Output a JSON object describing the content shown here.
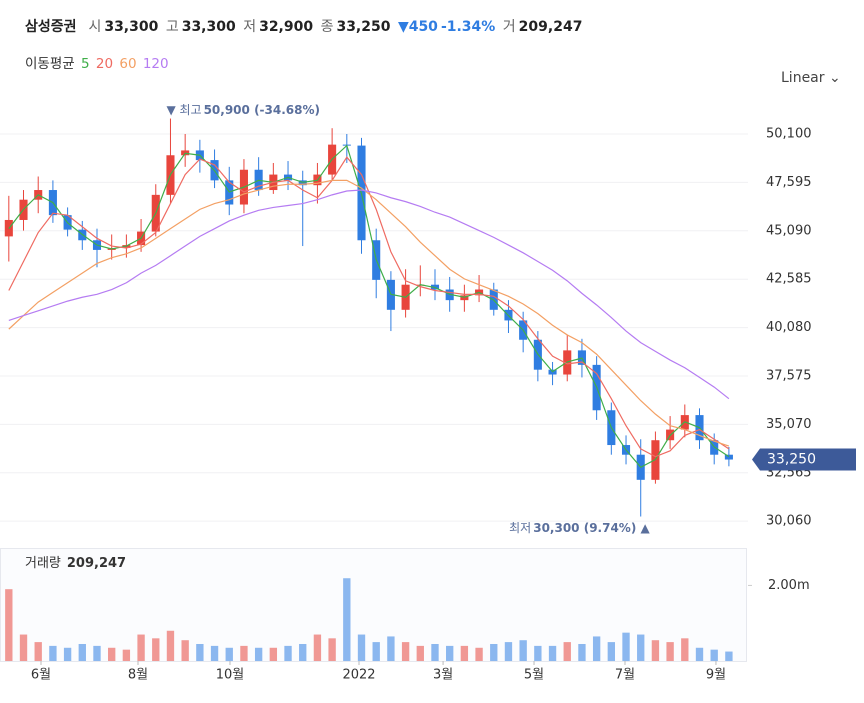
{
  "header": {
    "name": "삼성증권",
    "open_label": "시",
    "open": "33,300",
    "high_label": "고",
    "high": "33,300",
    "low_label": "저",
    "low": "32,900",
    "close_label": "종",
    "close": "33,250",
    "change": "▼450",
    "change_pct": "-1.34%",
    "volume_label": "거",
    "volume": "209,247"
  },
  "ma_legend": {
    "title": "이동평균"
  },
  "scale_mode": "Linear",
  "chart_data": [
    {
      "type": "candlestick",
      "up_color": "#e8453c",
      "down_color": "#2f7de1",
      "open": [
        44800,
        45650,
        46700,
        47200,
        45900,
        45150,
        44600,
        44100,
        44200,
        44350,
        45050,
        46950,
        49000,
        49250,
        48750,
        47700,
        46450,
        48250,
        47200,
        48000,
        47700,
        47450,
        48000,
        49550,
        49500,
        44600,
        42550,
        41000,
        42300,
        42300,
        42050,
        41500,
        41750,
        42050,
        41000,
        40450,
        39450,
        37900,
        37650,
        38900,
        38150,
        35800,
        34000,
        33500,
        32200,
        34250,
        34800,
        35550,
        34250,
        33500
      ],
      "high": [
        46900,
        47200,
        47900,
        47700,
        46300,
        45600,
        45200,
        44900,
        44900,
        45700,
        47500,
        50900,
        50100,
        49800,
        49300,
        48400,
        48800,
        48900,
        48600,
        48700,
        48200,
        48600,
        50400,
        50100,
        49900,
        45200,
        43000,
        43100,
        43300,
        43100,
        42700,
        42300,
        42800,
        42400,
        41500,
        40900,
        39900,
        38300,
        39700,
        39500,
        38600,
        36200,
        34500,
        34300,
        34700,
        35500,
        36100,
        35900,
        34600,
        33900
      ],
      "low": [
        43500,
        45100,
        46000,
        45500,
        44800,
        44100,
        43200,
        43600,
        43700,
        44000,
        44800,
        46500,
        48400,
        48100,
        47300,
        45900,
        46000,
        46900,
        47000,
        47200,
        44300,
        46500,
        47700,
        48600,
        43900,
        41600,
        39900,
        40600,
        41700,
        41500,
        40900,
        40900,
        41400,
        40700,
        39800,
        38800,
        37300,
        37100,
        37300,
        37500,
        35300,
        33500,
        33000,
        30300,
        32000,
        33800,
        34400,
        33800,
        33000,
        32900
      ],
      "close": [
        45650,
        46700,
        47200,
        45900,
        45150,
        44600,
        44100,
        44200,
        44350,
        45050,
        46950,
        49000,
        49250,
        48750,
        47700,
        46450,
        48250,
        47200,
        48000,
        47700,
        47450,
        48000,
        49550,
        49500,
        44600,
        42550,
        41000,
        42300,
        42300,
        42050,
        41500,
        41750,
        42050,
        41000,
        40450,
        39450,
        37900,
        37650,
        38900,
        38150,
        35800,
        34000,
        33500,
        32200,
        34250,
        34800,
        35550,
        34250,
        33500,
        33250
      ],
      "series": [
        {
          "name": "5",
          "color": "#3fae49",
          "values": [
            45200,
            46200,
            46950,
            46550,
            45500,
            44900,
            44350,
            44150,
            44300,
            44700,
            46000,
            48000,
            49100,
            49000,
            48200,
            47100,
            47350,
            47700,
            47600,
            47850,
            47600,
            47700,
            48800,
            49500,
            47000,
            43600,
            41800,
            41650,
            42300,
            42150,
            41800,
            41650,
            41900,
            41500,
            40700,
            39950,
            38700,
            37800,
            38300,
            38500,
            37000,
            34900,
            33750,
            32850,
            33250,
            34500,
            35200,
            34900,
            33900,
            33400
          ]
        },
        {
          "name": "20",
          "color": "#ef6b62",
          "values": [
            42000,
            43500,
            45000,
            46000,
            45900,
            45300,
            44700,
            44300,
            44200,
            44400,
            45000,
            46500,
            48000,
            48800,
            48500,
            47600,
            47100,
            47400,
            47600,
            47700,
            47200,
            46800,
            47700,
            48900,
            48000,
            46200,
            44000,
            42500,
            42200,
            42000,
            41900,
            41800,
            41800,
            41700,
            41200,
            40500,
            39500,
            38600,
            38200,
            38300,
            37700,
            36400,
            35000,
            33800,
            33400,
            33700,
            34500,
            34800,
            34300,
            33800
          ]
        },
        {
          "name": "60",
          "color": "#f3a064",
          "values": [
            40000,
            40700,
            41400,
            41900,
            42400,
            42900,
            43400,
            43700,
            43900,
            44200,
            44700,
            45200,
            45700,
            46200,
            46500,
            46700,
            47000,
            47200,
            47400,
            47500,
            47500,
            47550,
            47700,
            47700,
            47300,
            46700,
            46000,
            45300,
            44500,
            43800,
            43100,
            42600,
            42300,
            42000,
            41700,
            41300,
            40800,
            40200,
            39700,
            39300,
            38700,
            37900,
            37100,
            36300,
            35600,
            35000,
            34800,
            34500,
            34200,
            33950
          ]
        },
        {
          "name": "120",
          "color": "#b57cf2",
          "values": [
            40450,
            40700,
            40950,
            41200,
            41450,
            41650,
            41800,
            42050,
            42400,
            42900,
            43300,
            43800,
            44300,
            44800,
            45200,
            45600,
            45900,
            46150,
            46300,
            46400,
            46500,
            46700,
            46950,
            47150,
            47200,
            47050,
            46800,
            46600,
            46350,
            46050,
            45800,
            45450,
            45100,
            44750,
            44350,
            43950,
            43500,
            43050,
            42500,
            41850,
            41250,
            40600,
            39900,
            39300,
            38850,
            38400,
            38000,
            37500,
            37000,
            36400
          ]
        }
      ],
      "xlim": [
        -0.6,
        50.3
      ],
      "xticks": [
        {
          "value": 2.19,
          "label": "6월"
        },
        {
          "value": 8.79,
          "label": "8월"
        },
        {
          "value": 15.05,
          "label": "10월"
        },
        {
          "value": 23.83,
          "label": "2022"
        },
        {
          "value": 29.55,
          "label": "3월"
        },
        {
          "value": 35.74,
          "label": "5월"
        },
        {
          "value": 41.93,
          "label": "7월"
        },
        {
          "value": 48.12,
          "label": "9월"
        }
      ],
      "ylim": [
        29085,
        51860
      ],
      "yticks": [
        {
          "value": 50100,
          "label": "50,100"
        },
        {
          "value": 47595,
          "label": "47,595"
        },
        {
          "value": 45090,
          "label": "45,090"
        },
        {
          "value": 42585,
          "label": "42,585"
        },
        {
          "value": 40080,
          "label": "40,080"
        },
        {
          "value": 37575,
          "label": "37,575"
        },
        {
          "value": 35070,
          "label": "35,070"
        },
        {
          "value": 32565,
          "label": "32,565"
        },
        {
          "value": 30060,
          "label": "30,060"
        }
      ],
      "grid": true,
      "annotations": [
        {
          "text": "▼ 최고",
          "value_text": "50,900 (-34.68%)"
        },
        {
          "text": "최저",
          "value_text": "30,300 (9.74%) ▲"
        }
      ]
    },
    {
      "type": "bar",
      "title": "거래량",
      "title_value": "209,247",
      "values": [
        1900000,
        700000,
        500000,
        400000,
        350000,
        450000,
        400000,
        350000,
        300000,
        700000,
        600000,
        800000,
        550000,
        450000,
        400000,
        350000,
        400000,
        350000,
        350000,
        400000,
        450000,
        700000,
        600000,
        2190000,
        700000,
        500000,
        650000,
        500000,
        400000,
        450000,
        400000,
        400000,
        350000,
        450000,
        500000,
        550000,
        400000,
        400000,
        500000,
        450000,
        650000,
        500000,
        750000,
        700000,
        550000,
        500000,
        600000,
        350000,
        300000,
        250000
      ],
      "ylim": [
        0,
        2990000
      ],
      "yticks": [
        {
          "value": 2000000,
          "label": "2.00m"
        }
      ]
    }
  ]
}
